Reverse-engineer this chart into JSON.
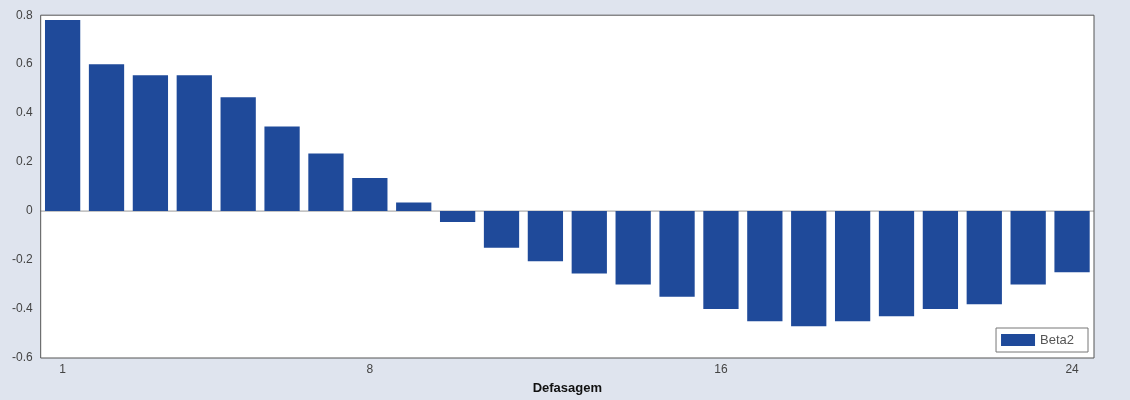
{
  "chart_data": {
    "type": "bar",
    "xlabel": "Defasagem",
    "categories": [
      "1",
      null,
      null,
      null,
      null,
      null,
      null,
      "8",
      null,
      null,
      null,
      null,
      null,
      null,
      null,
      "16",
      null,
      null,
      null,
      null,
      null,
      null,
      null,
      "24"
    ],
    "series": [
      {
        "name": "Beta2",
        "color": "#1f4a9a",
        "values": [
          0.78,
          0.6,
          0.555,
          0.555,
          0.465,
          0.345,
          0.235,
          0.135,
          0.035,
          -0.045,
          -0.15,
          -0.205,
          -0.255,
          -0.3,
          -0.35,
          -0.4,
          -0.45,
          -0.47,
          -0.45,
          -0.43,
          -0.4,
          -0.38,
          -0.3,
          -0.25
        ]
      }
    ],
    "ylim": [
      -0.6,
      0.8
    ],
    "yticks": [
      -0.6,
      -0.4,
      -0.2,
      0,
      0.2,
      0.4,
      0.6,
      0.8
    ],
    "ref_lines": [
      {
        "axis": "y",
        "value": 0,
        "color": "#9a9a9a"
      }
    ],
    "grid": false,
    "legend": "bottom right"
  }
}
